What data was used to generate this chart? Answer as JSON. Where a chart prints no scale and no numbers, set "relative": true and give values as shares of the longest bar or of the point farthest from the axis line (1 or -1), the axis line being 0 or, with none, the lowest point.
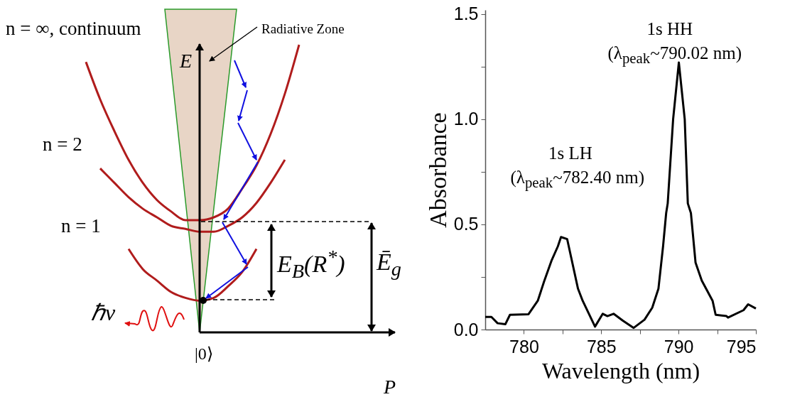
{
  "chart_data": [
    {
      "type": "line",
      "relative": true,
      "categories": [
        null,
        null,
        null,
        null,
        null,
        null,
        null,
        null,
        null,
        null,
        null,
        null,
        null,
        null,
        null,
        null,
        null
      ],
      "series": [
        {
          "name": "n = ∞, continuum",
          "color": "#b01c1c",
          "values": [
            0.94,
            0.81,
            0.7,
            0.6,
            0.52,
            0.46,
            0.42,
            0.39,
            0.39,
            0.4,
            0.43,
            0.5,
            0.58,
            0.69,
            0.83,
            1.0,
            null
          ]
        },
        {
          "name": "n = 2",
          "color": "#b01c1c",
          "values": [
            null,
            0.57,
            0.52,
            0.47,
            0.43,
            0.4,
            0.37,
            0.36,
            0.35,
            0.35,
            0.37,
            0.4,
            0.45,
            0.52,
            0.6,
            null,
            null
          ]
        },
        {
          "name": "n = 1",
          "color": "#b01c1c",
          "values": [
            null,
            null,
            null,
            0.29,
            0.22,
            0.18,
            0.14,
            0.12,
            0.11,
            0.12,
            0.16,
            0.21,
            0.29,
            null,
            null,
            null,
            null
          ]
        }
      ],
      "annotations": [
        "Radiative Zone",
        "E",
        "P",
        "E$_{B}$(R$^{*}$)",
        "Ē$_{g}$",
        "ℏν",
        "|0⟩"
      ]
    },
    {
      "type": "line",
      "xlabel": "Wavelength (nm)",
      "ylabel": "Absorbance",
      "xlim": [
        777.5,
        795
      ],
      "ylim": [
        0,
        1.52
      ],
      "xticks": [
        780,
        {
          "value": 782.5,
          "label": null
        },
        785,
        {
          "value": 787.5,
          "label": null
        },
        790,
        {
          "value": 792.5,
          "label": null
        },
        795
      ],
      "yticks": [
        {
          "value": 0,
          "label": "0.0"
        },
        {
          "value": 0.25,
          "label": null
        },
        {
          "value": 0.5,
          "label": "0.5"
        },
        {
          "value": 0.75,
          "label": null
        },
        {
          "value": 1,
          "label": "1.0"
        },
        {
          "value": 1.25,
          "label": null
        },
        {
          "value": 1.5,
          "label": "1.5"
        }
      ],
      "series": [
        {
          "color": "#000000",
          "x": [
            777.5,
            777.9,
            778.3,
            778.8,
            779.1,
            780.3,
            780.9,
            781.3,
            781.8,
            782.2,
            782.4,
            782.8,
            783.5,
            783.8,
            784.6,
            785.1,
            785.4,
            785.8,
            786.4,
            787.1,
            787.8,
            788.3,
            788.7,
            789.0,
            789.2,
            789.3,
            789.65,
            790.02,
            790.4,
            790.6,
            790.8,
            791.1,
            791.5,
            792.2,
            792.4,
            793.1,
            793.2,
            794.2,
            794.5,
            795.0
          ],
          "values": [
            0.06,
            0.06,
            0.03,
            0.025,
            0.07,
            0.073,
            0.137,
            0.227,
            0.33,
            0.396,
            0.44,
            0.43,
            0.194,
            0.137,
            0.014,
            0.075,
            0.064,
            0.075,
            0.042,
            0.008,
            0.047,
            0.104,
            0.194,
            0.396,
            0.554,
            0.6,
            1.0,
            1.27,
            1.0,
            0.6,
            0.554,
            0.318,
            0.233,
            0.137,
            0.07,
            0.064,
            0.057,
            0.092,
            0.12,
            0.1
          ]
        }
      ],
      "annotations": [
        "1s HH",
        "(λ$_{peak}$~790.02 nm)",
        "1s LH",
        "(λ$_{peak}$~782.40 nm)"
      ]
    }
  ]
}
